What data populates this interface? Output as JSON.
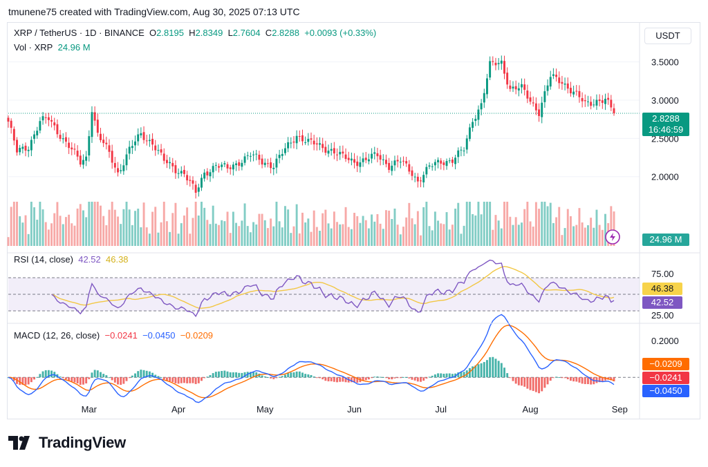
{
  "header": {
    "credit": "tmunene75 created with TradingView.com, Aug 30, 2025 07:13 UTC"
  },
  "legend": {
    "symbol": "XRP / TetherUS · 1D · BINANCE",
    "open_label": "O",
    "open": "2.8195",
    "high_label": "H",
    "high": "2.8349",
    "low_label": "L",
    "low": "2.7604",
    "close_label": "C",
    "close": "2.8288",
    "change": "+0.0093 (+0.33%)",
    "vol_label": "Vol · XRP",
    "vol": "24.96 M"
  },
  "currency_button": "USDT",
  "price_axis": {
    "ticks": [
      "3.5000",
      "3.0000",
      "2.5000",
      "2.0000"
    ],
    "last_price": "2.8288",
    "countdown": "16:46:59",
    "volume_tag": "24.96 M"
  },
  "rsi": {
    "label": "RSI (14, close)",
    "value": "42.52",
    "ma": "46.38",
    "ticks": [
      "75.00",
      "25.00"
    ]
  },
  "macd": {
    "label": "MACD (12, 26, close)",
    "hist": "−0.0241",
    "macd": "−0.0450",
    "signal": "−0.0209",
    "ticks": [
      "0.2000"
    ],
    "tag_signal": "−0.0209",
    "tag_hist": "−0.0241",
    "tag_macd": "−0.0450"
  },
  "x_axis": [
    "Mar",
    "Apr",
    "May",
    "Jun",
    "Jul",
    "Aug",
    "Sep"
  ],
  "brand": "TradingView",
  "colors": {
    "up": "#089981",
    "down": "#f23645",
    "rsi": "#7e57c2",
    "rsi_ma": "#f2c744",
    "macd": "#2962ff",
    "signal": "#ff6d00"
  },
  "chart_data": {
    "type": "candlestick",
    "x_range": [
      "2025-02-01",
      "2025-08-30"
    ],
    "price_ylim": [
      1.6,
      3.75
    ],
    "close_series_anchors": [
      [
        "2025-02-01",
        2.72
      ],
      [
        "2025-02-04",
        2.32
      ],
      [
        "2025-02-08",
        2.4
      ],
      [
        "2025-02-12",
        2.72
      ],
      [
        "2025-02-15",
        2.75
      ],
      [
        "2025-02-18",
        2.6
      ],
      [
        "2025-02-22",
        2.4
      ],
      [
        "2025-02-26",
        2.18
      ],
      [
        "2025-02-28",
        2.25
      ],
      [
        "2025-03-02",
        2.9
      ],
      [
        "2025-03-04",
        2.55
      ],
      [
        "2025-03-08",
        2.3
      ],
      [
        "2025-03-11",
        2.05
      ],
      [
        "2025-03-15",
        2.35
      ],
      [
        "2025-03-19",
        2.55
      ],
      [
        "2025-03-23",
        2.45
      ],
      [
        "2025-03-27",
        2.2
      ],
      [
        "2025-03-31",
        2.1
      ],
      [
        "2025-04-03",
        2.05
      ],
      [
        "2025-04-07",
        1.78
      ],
      [
        "2025-04-10",
        2.05
      ],
      [
        "2025-04-14",
        2.15
      ],
      [
        "2025-04-18",
        2.1
      ],
      [
        "2025-04-22",
        2.2
      ],
      [
        "2025-04-26",
        2.28
      ],
      [
        "2025-04-30",
        2.2
      ],
      [
        "2025-05-04",
        2.15
      ],
      [
        "2025-05-08",
        2.35
      ],
      [
        "2025-05-12",
        2.55
      ],
      [
        "2025-05-16",
        2.45
      ],
      [
        "2025-05-20",
        2.4
      ],
      [
        "2025-05-24",
        2.35
      ],
      [
        "2025-05-28",
        2.25
      ],
      [
        "2025-06-01",
        2.2
      ],
      [
        "2025-06-05",
        2.22
      ],
      [
        "2025-06-09",
        2.28
      ],
      [
        "2025-06-13",
        2.15
      ],
      [
        "2025-06-17",
        2.2
      ],
      [
        "2025-06-21",
        2.05
      ],
      [
        "2025-06-23",
        1.95
      ],
      [
        "2025-06-27",
        2.12
      ],
      [
        "2025-07-01",
        2.2
      ],
      [
        "2025-07-05",
        2.22
      ],
      [
        "2025-07-09",
        2.35
      ],
      [
        "2025-07-12",
        2.75
      ],
      [
        "2025-07-15",
        2.95
      ],
      [
        "2025-07-18",
        3.45
      ],
      [
        "2025-07-22",
        3.5
      ],
      [
        "2025-07-25",
        3.15
      ],
      [
        "2025-07-29",
        3.15
      ],
      [
        "2025-08-02",
        2.95
      ],
      [
        "2025-08-04",
        2.85
      ],
      [
        "2025-08-08",
        3.3
      ],
      [
        "2025-08-12",
        3.25
      ],
      [
        "2025-08-16",
        3.1
      ],
      [
        "2025-08-20",
        2.95
      ],
      [
        "2025-08-24",
        3.0
      ],
      [
        "2025-08-27",
        3.0
      ],
      [
        "2025-08-30",
        2.83
      ]
    ],
    "rsi_ylim": [
      20,
      95
    ],
    "rsi_levels": [
      70,
      50,
      30
    ],
    "macd_ylim": [
      -0.12,
      0.28
    ]
  }
}
